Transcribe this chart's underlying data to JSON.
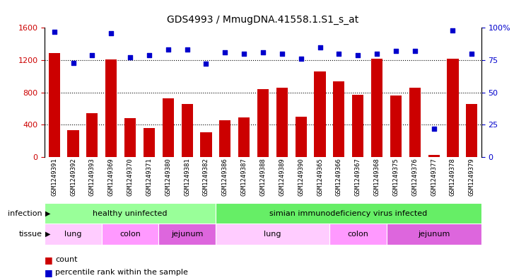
{
  "title": "GDS4993 / MmugDNA.41558.1.S1_s_at",
  "samples": [
    "GSM1249391",
    "GSM1249392",
    "GSM1249393",
    "GSM1249369",
    "GSM1249370",
    "GSM1249371",
    "GSM1249380",
    "GSM1249381",
    "GSM1249382",
    "GSM1249386",
    "GSM1249387",
    "GSM1249388",
    "GSM1249389",
    "GSM1249390",
    "GSM1249365",
    "GSM1249366",
    "GSM1249367",
    "GSM1249368",
    "GSM1249375",
    "GSM1249376",
    "GSM1249377",
    "GSM1249378",
    "GSM1249379"
  ],
  "counts": [
    1290,
    330,
    540,
    1210,
    480,
    355,
    730,
    660,
    310,
    460,
    490,
    840,
    860,
    500,
    1060,
    940,
    770,
    1220,
    760,
    860,
    30,
    1220,
    660
  ],
  "percentiles": [
    97,
    73,
    79,
    96,
    77,
    79,
    83,
    83,
    72,
    81,
    80,
    81,
    80,
    76,
    85,
    80,
    79,
    80,
    82,
    82,
    22,
    98,
    80
  ],
  "bar_color": "#cc0000",
  "dot_color": "#0000cc",
  "ylim_left": [
    0,
    1600
  ],
  "ylim_right": [
    0,
    100
  ],
  "yticks_left": [
    0,
    400,
    800,
    1200,
    1600
  ],
  "yticks_right": [
    0,
    25,
    50,
    75,
    100
  ],
  "infection_groups": [
    {
      "label": "healthy uninfected",
      "start": 0,
      "end": 8,
      "color": "#99ff99"
    },
    {
      "label": "simian immunodeficiency virus infected",
      "start": 9,
      "end": 22,
      "color": "#66ee66"
    }
  ],
  "tissue_groups": [
    {
      "label": "lung",
      "start": 0,
      "end": 2,
      "color": "#ffccff"
    },
    {
      "label": "colon",
      "start": 3,
      "end": 5,
      "color": "#ff99ff"
    },
    {
      "label": "jejunum",
      "start": 6,
      "end": 8,
      "color": "#dd66dd"
    },
    {
      "label": "lung",
      "start": 9,
      "end": 14,
      "color": "#ffccff"
    },
    {
      "label": "colon",
      "start": 15,
      "end": 17,
      "color": "#ff99ff"
    },
    {
      "label": "jejunum",
      "start": 18,
      "end": 22,
      "color": "#dd66dd"
    }
  ],
  "infection_label": "infection",
  "tissue_label": "tissue",
  "legend_count_label": "count",
  "legend_percentile_label": "percentile rank within the sample",
  "xtick_bg_color": "#d8d8d8",
  "hgrid_color": "black",
  "hgrid_vals": [
    400,
    800,
    1200
  ]
}
